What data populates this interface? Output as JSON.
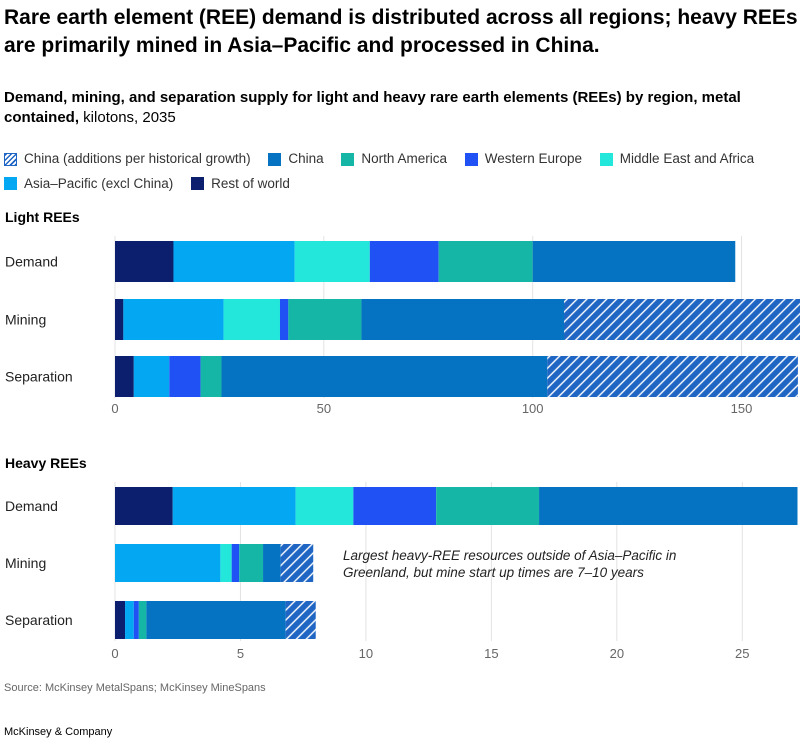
{
  "title": "Rare earth element (REE) demand is distributed across all regions; heavy REEs are primarily mined in Asia–Pacific and processed in China.",
  "subtitle_bold": "Demand, mining, and separation supply for light and heavy rare earth elements (REEs) by region, metal contained,",
  "subtitle_unit": " kilotons, 2035",
  "legend": [
    {
      "label": "China (additions per historical growth)",
      "color": "#1f66c4",
      "hatched": true
    },
    {
      "label": "China",
      "color": "#0673c2",
      "hatched": false
    },
    {
      "label": "North America",
      "color": "#16b6a6",
      "hatched": false
    },
    {
      "label": "Western Europe",
      "color": "#2051f5",
      "hatched": false
    },
    {
      "label": "Middle East and Africa",
      "color": "#23e7da",
      "hatched": false
    },
    {
      "label": "Asia–Pacific (excl China)",
      "color": "#04a7f2",
      "hatched": false
    },
    {
      "label": "Rest of world",
      "color": "#0b1f6e",
      "hatched": false
    }
  ],
  "source": "Source: McKinsey MetalSpans; McKinsey MineSpans",
  "brand": "McKinsey & Company",
  "chart_data": [
    {
      "type": "bar",
      "orientation": "horizontal",
      "stacked": true,
      "panel_title": "Light REEs",
      "categories": [
        "Demand",
        "Mining",
        "Separation"
      ],
      "xlim": [
        0,
        164
      ],
      "xticks": [
        0,
        50,
        100,
        150
      ],
      "series": [
        {
          "name": "Rest of world",
          "values": [
            14,
            2,
            4.5
          ]
        },
        {
          "name": "Asia–Pacific (excl China)",
          "values": [
            29,
            24,
            8.5
          ]
        },
        {
          "name": "Middle East and Africa",
          "values": [
            18,
            13.5,
            0
          ]
        },
        {
          "name": "Western Europe",
          "values": [
            16.5,
            2,
            7.5
          ]
        },
        {
          "name": "North America",
          "values": [
            22.5,
            17.5,
            5
          ]
        },
        {
          "name": "China",
          "values": [
            48.5,
            48.5,
            78
          ]
        },
        {
          "name": "China (additions per historical growth)",
          "values": [
            0,
            56.5,
            60
          ]
        }
      ]
    },
    {
      "type": "bar",
      "orientation": "horizontal",
      "stacked": true,
      "panel_title": "Heavy REEs",
      "categories": [
        "Demand",
        "Mining",
        "Separation"
      ],
      "xlim": [
        0,
        27.3
      ],
      "xticks": [
        0,
        5,
        10,
        15,
        20,
        25
      ],
      "series": [
        {
          "name": "Rest of world",
          "values": [
            2.3,
            0,
            0.4
          ]
        },
        {
          "name": "Asia–Pacific (excl China)",
          "values": [
            4.9,
            4.2,
            0.35
          ]
        },
        {
          "name": "Middle East and Africa",
          "values": [
            2.3,
            0.45,
            0
          ]
        },
        {
          "name": "Western Europe",
          "values": [
            3.3,
            0.3,
            0.2
          ]
        },
        {
          "name": "North America",
          "values": [
            4.1,
            0.95,
            0.3
          ]
        },
        {
          "name": "China",
          "values": [
            10.3,
            0.7,
            5.55
          ]
        },
        {
          "name": "China (additions per historical growth)",
          "values": [
            0,
            1.3,
            1.2
          ]
        }
      ],
      "annotation": "Largest heavy-REE resources outside of Asia–Pacific in Greenland, but mine start up times are 7–10 years"
    }
  ]
}
